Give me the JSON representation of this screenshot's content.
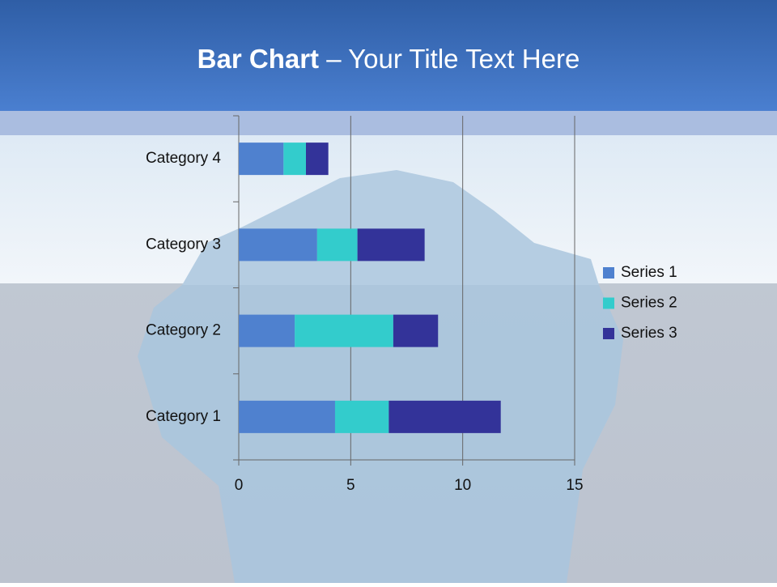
{
  "chart_data": {
    "type": "stacked-bar-horizontal",
    "title_parts": [
      "Bar Chart",
      "– Your Title Text Here"
    ],
    "categories": [
      "Category 1",
      "Category 2",
      "Category 3",
      "Category 4"
    ],
    "series": [
      {
        "name": "Series 1",
        "color": "#4f81cf",
        "values": [
          4.3,
          2.5,
          3.5,
          2
        ]
      },
      {
        "name": "Series 2",
        "color": "#33cccc",
        "values": [
          2.4,
          4.4,
          1.8,
          1
        ]
      },
      {
        "name": "Series 3",
        "color": "#333399",
        "values": [
          5,
          2,
          3,
          1
        ]
      }
    ],
    "xlim": [
      0,
      15
    ],
    "xticks": [
      0,
      5,
      10,
      15
    ],
    "grid": true,
    "legend": "right"
  }
}
